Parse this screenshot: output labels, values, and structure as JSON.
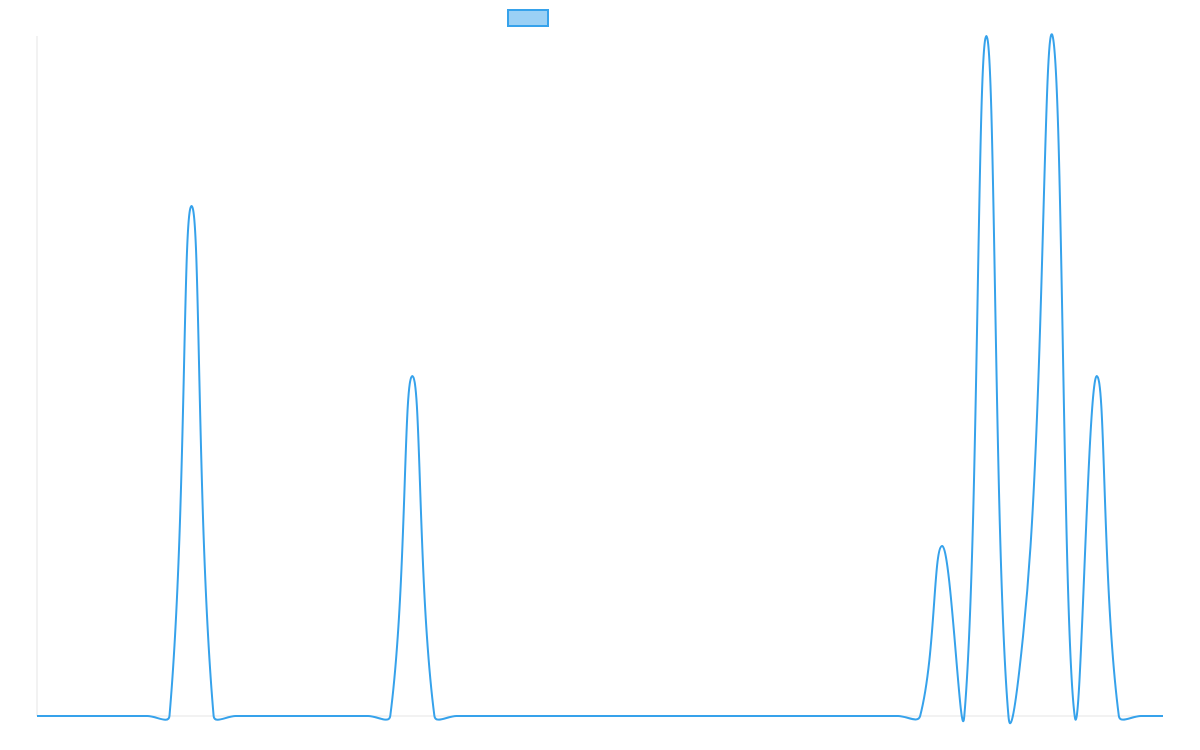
{
  "chart_data": {
    "type": "line",
    "categories": [
      null,
      null,
      null,
      null,
      null,
      null,
      null,
      null,
      null,
      null,
      null,
      null,
      null,
      null,
      null,
      null,
      null,
      null,
      null,
      null,
      null,
      null,
      null,
      null,
      null,
      null,
      null,
      null,
      null,
      null,
      null,
      null,
      null,
      null,
      null,
      null,
      null,
      null,
      null,
      null,
      null,
      null,
      null,
      null,
      null,
      null,
      null,
      null,
      null,
      null,
      null,
      null
    ],
    "series": [
      {
        "color": "#36a2eb",
        "values": [
          0,
          0,
          0,
          0,
          0,
          0,
          0,
          0.75,
          0,
          0,
          0,
          0,
          0,
          0,
          0,
          0,
          0,
          0.5,
          0,
          0,
          0,
          0,
          0,
          0,
          0,
          0,
          0,
          0,
          0,
          0,
          0,
          0,
          0,
          0,
          0,
          0,
          0,
          0,
          0,
          0,
          0,
          0.25,
          0,
          1,
          0,
          0.25,
          1,
          0,
          0.5,
          0,
          0,
          0
        ]
      }
    ],
    "ylim": [
      0,
      1
    ]
  }
}
